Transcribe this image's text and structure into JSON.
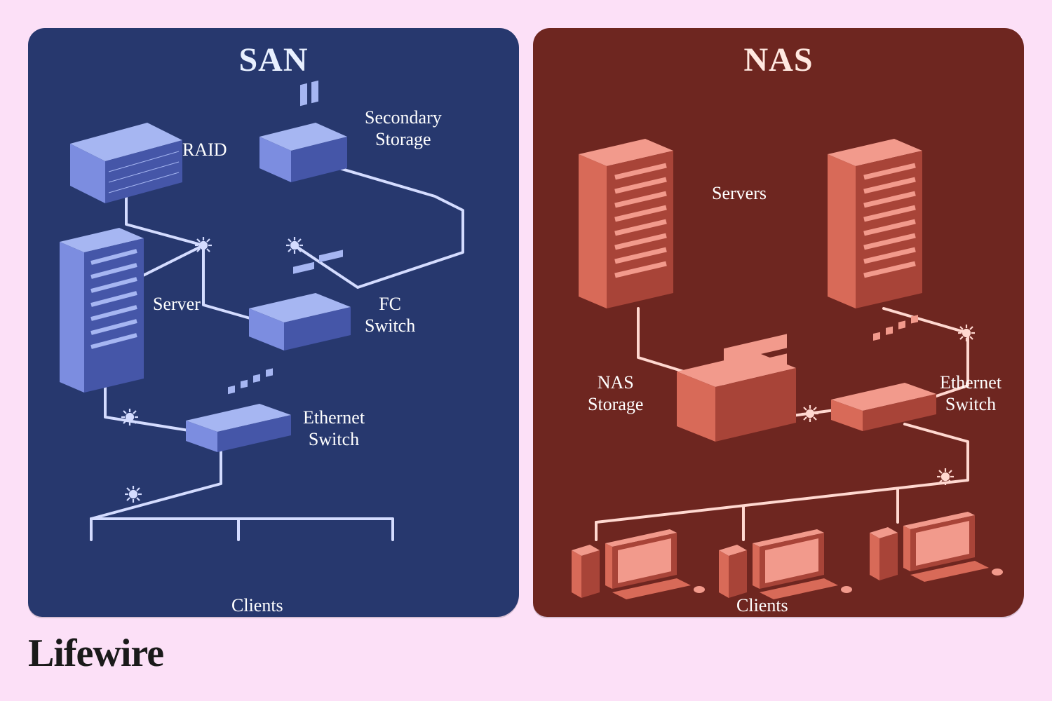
{
  "page_bg": "#fce0f7",
  "brand": "Lifewire",
  "brand_color": "#1a1a1a",
  "san": {
    "title": "SAN",
    "title_color": "#e8f0ff",
    "bg": "#27386e",
    "line": "#d4dcff",
    "light": "#a6b6f2",
    "mid": "#7c8de0",
    "dark": "#4556a8",
    "labels": {
      "raid": "RAID",
      "secstor": "Secondary\nStorage",
      "server": "Server",
      "fcswitch": "FC\nSwitch",
      "ethswitch": "Ethernet\nSwitch",
      "clients": "Clients"
    },
    "label_color": "#ffffff"
  },
  "nas": {
    "title": "NAS",
    "title_color": "#ffe8e0",
    "bg": "#6e2620",
    "line": "#ffd8d0",
    "light": "#f29a8c",
    "mid": "#d86a58",
    "dark": "#a84438",
    "labels": {
      "servers": "Servers",
      "nasstor": "NAS\nStorage",
      "ethswitch": "Ethernet\nSwitch",
      "clients": "Clients"
    },
    "label_color": "#ffffff"
  }
}
